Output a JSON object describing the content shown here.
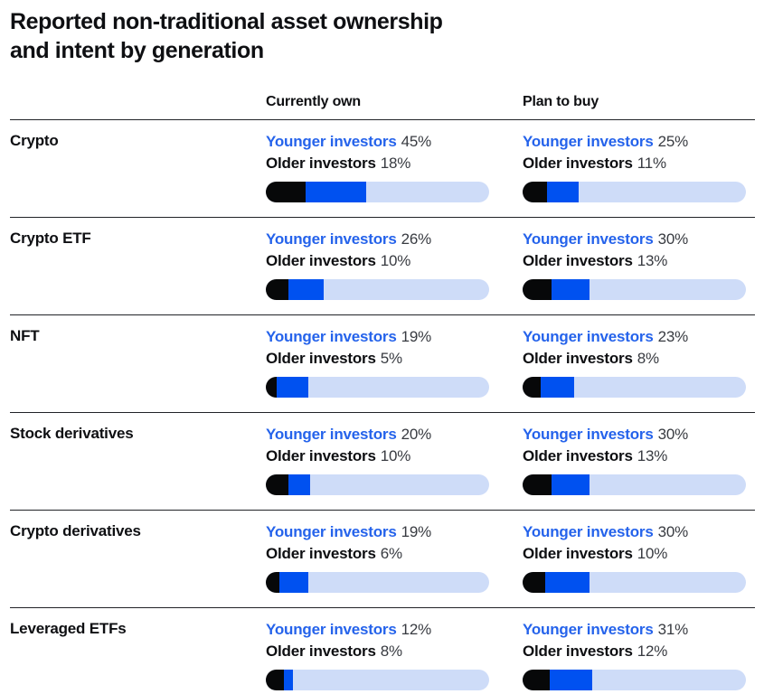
{
  "title": {
    "line1": "Reported non-traditional asset ownership",
    "line2": "and intent by generation"
  },
  "columns": [
    {
      "key": "own",
      "label": "Currently own"
    },
    {
      "key": "buy",
      "label": "Plan to buy"
    }
  ],
  "legend": {
    "younger": "Younger investors",
    "older": "Older investors"
  },
  "rows": [
    {
      "label": "Crypto",
      "own": {
        "younger": 45,
        "younger_text": "45%",
        "older": 18,
        "older_text": "18%"
      },
      "buy": {
        "younger": 25,
        "younger_text": "25%",
        "older": 11,
        "older_text": "11%"
      }
    },
    {
      "label": "Crypto ETF",
      "own": {
        "younger": 26,
        "younger_text": "26%",
        "older": 10,
        "older_text": "10%"
      },
      "buy": {
        "younger": 30,
        "younger_text": "30%",
        "older": 13,
        "older_text": "13%"
      }
    },
    {
      "label": "NFT",
      "own": {
        "younger": 19,
        "younger_text": "19%",
        "older": 5,
        "older_text": "5%"
      },
      "buy": {
        "younger": 23,
        "younger_text": "23%",
        "older": 8,
        "older_text": "8%"
      }
    },
    {
      "label": "Stock derivatives",
      "own": {
        "younger": 20,
        "younger_text": "20%",
        "older": 10,
        "older_text": "10%"
      },
      "buy": {
        "younger": 30,
        "younger_text": "30%",
        "older": 13,
        "older_text": "13%"
      }
    },
    {
      "label": "Crypto derivatives",
      "own": {
        "younger": 19,
        "younger_text": "19%",
        "older": 6,
        "older_text": "6%"
      },
      "buy": {
        "younger": 30,
        "younger_text": "30%",
        "older": 10,
        "older_text": "10%"
      }
    },
    {
      "label": "Leveraged ETFs",
      "own": {
        "younger": 12,
        "younger_text": "12%",
        "older": 8,
        "older_text": "8%"
      },
      "buy": {
        "younger": 31,
        "younger_text": "31%",
        "older": 12,
        "older_text": "12%"
      }
    }
  ],
  "colors": {
    "younger_bar": "#0051f0",
    "younger_text": "#2563eb",
    "older_bar": "#070809",
    "track": "#cedcf8",
    "divider": "#212327",
    "text": "#0e0f12"
  },
  "chart_data": {
    "type": "bar",
    "unit": "%",
    "title": "Reported non-traditional asset ownership and intent by generation",
    "categories": [
      "Crypto",
      "Crypto ETF",
      "NFT",
      "Stock derivatives",
      "Crypto derivatives",
      "Leveraged ETFs"
    ],
    "groups": [
      "Currently own",
      "Plan to buy"
    ],
    "series": [
      {
        "name": "Younger investors — Currently own",
        "values": [
          45,
          26,
          19,
          20,
          19,
          12
        ]
      },
      {
        "name": "Older investors — Currently own",
        "values": [
          18,
          10,
          5,
          10,
          6,
          8
        ]
      },
      {
        "name": "Younger investors — Plan to buy",
        "values": [
          25,
          30,
          23,
          30,
          30,
          31
        ]
      },
      {
        "name": "Older investors — Plan to buy",
        "values": [
          11,
          13,
          8,
          13,
          10,
          12
        ]
      }
    ],
    "xlim": [
      0,
      100
    ],
    "legend_position": "inline-per-cell",
    "grid": false,
    "bar_style": "stacked-pill: black = older %, black+blue = younger %, light track = 100%"
  }
}
